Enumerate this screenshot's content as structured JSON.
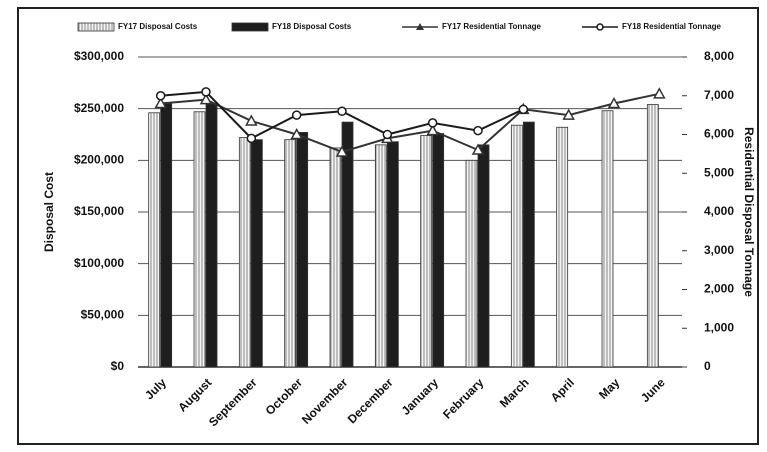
{
  "chart_data": {
    "type": "bar",
    "categories": [
      "July",
      "August",
      "September",
      "October",
      "November",
      "December",
      "January",
      "February",
      "March",
      "April",
      "May",
      "June"
    ],
    "series": [
      {
        "name": "FY17 Disposal Costs",
        "type": "bar",
        "color": "#e8e8e8",
        "values": [
          246000,
          247000,
          222000,
          220000,
          212000,
          215000,
          224000,
          200000,
          234000,
          232000,
          248000,
          254000
        ]
      },
      {
        "name": "FY18 Disposal Costs",
        "type": "bar",
        "color": "#1e1e1e",
        "values": [
          255000,
          255000,
          220000,
          227000,
          237000,
          218000,
          226000,
          215000,
          237000,
          null,
          null,
          null
        ]
      },
      {
        "name": "FY17 Residential Tonnage",
        "type": "line",
        "axis": "y2",
        "marker": "triangle",
        "color": "#333333",
        "values": [
          6800,
          6900,
          6350,
          6000,
          5550,
          5900,
          6100,
          5600,
          6650,
          6500,
          6800,
          7050
        ]
      },
      {
        "name": "FY18 Residential Tonnage",
        "type": "line",
        "axis": "y2",
        "marker": "circle",
        "color": "#1a1a1a",
        "values": [
          7000,
          7100,
          5900,
          6500,
          6600,
          6000,
          6300,
          6100,
          6650,
          null,
          null,
          null
        ]
      }
    ],
    "ylabel": "Disposal Cost",
    "y2label": "Residential Disposal Tonnage",
    "ylim": [
      0,
      300000
    ],
    "yticks": [
      {
        "value": 0,
        "label": "$0"
      },
      {
        "value": 50000,
        "label": "$50,000"
      },
      {
        "value": 100000,
        "label": "$100,000"
      },
      {
        "value": 150000,
        "label": "$150,000"
      },
      {
        "value": 200000,
        "label": "$200,000"
      },
      {
        "value": 250000,
        "label": "$250,000"
      },
      {
        "value": 300000,
        "label": "$300,000"
      }
    ],
    "y2lim": [
      0,
      8000
    ],
    "y2ticks": [
      0,
      {
        "value": 1000,
        "label": "1,000"
      },
      {
        "value": 2000,
        "label": "2,000"
      },
      {
        "value": 3000,
        "label": "3,000"
      },
      {
        "value": 4000,
        "label": "4,000"
      },
      {
        "value": 5000,
        "label": "5,000"
      },
      {
        "value": 6000,
        "label": "6,000"
      },
      {
        "value": 7000,
        "label": "7,000"
      },
      {
        "value": 8000,
        "label": "8,000"
      }
    ],
    "grid": true,
    "legend": "top"
  }
}
